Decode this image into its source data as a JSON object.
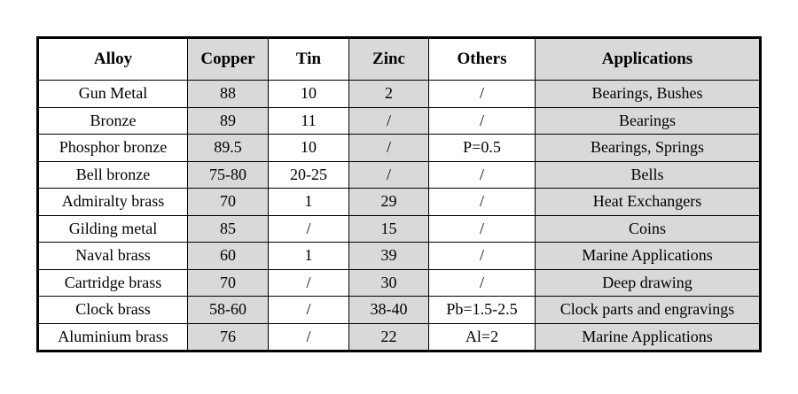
{
  "table": {
    "headers": [
      "Alloy",
      "Copper",
      "Tin",
      "Zinc",
      "Others",
      "Applications"
    ],
    "rows": [
      [
        "Gun Metal",
        "88",
        "10",
        "2",
        "/",
        "Bearings, Bushes"
      ],
      [
        "Bronze",
        "89",
        "11",
        "/",
        "/",
        "Bearings"
      ],
      [
        "Phosphor bronze",
        "89.5",
        "10",
        "/",
        "P=0.5",
        "Bearings, Springs"
      ],
      [
        "Bell bronze",
        "75-80",
        "20-25",
        "/",
        "/",
        "Bells"
      ],
      [
        "Admiralty brass",
        "70",
        "1",
        "29",
        "/",
        "Heat Exchangers"
      ],
      [
        "Gilding metal",
        "85",
        "/",
        "15",
        "/",
        "Coins"
      ],
      [
        "Naval brass",
        "60",
        "1",
        "39",
        "/",
        "Marine Applications"
      ],
      [
        "Cartridge brass",
        "70",
        "/",
        "30",
        "/",
        "Deep drawing"
      ],
      [
        "Clock brass",
        "58-60",
        "/",
        "38-40",
        "Pb=1.5-2.5",
        "Clock parts and engravings"
      ],
      [
        "Aluminium brass",
        "76",
        "/",
        "22",
        "Al=2",
        "Marine Applications"
      ]
    ]
  },
  "colors": {
    "shaded_column": "#d9d9d9",
    "plain_column": "#ffffff",
    "border": "#000000"
  }
}
